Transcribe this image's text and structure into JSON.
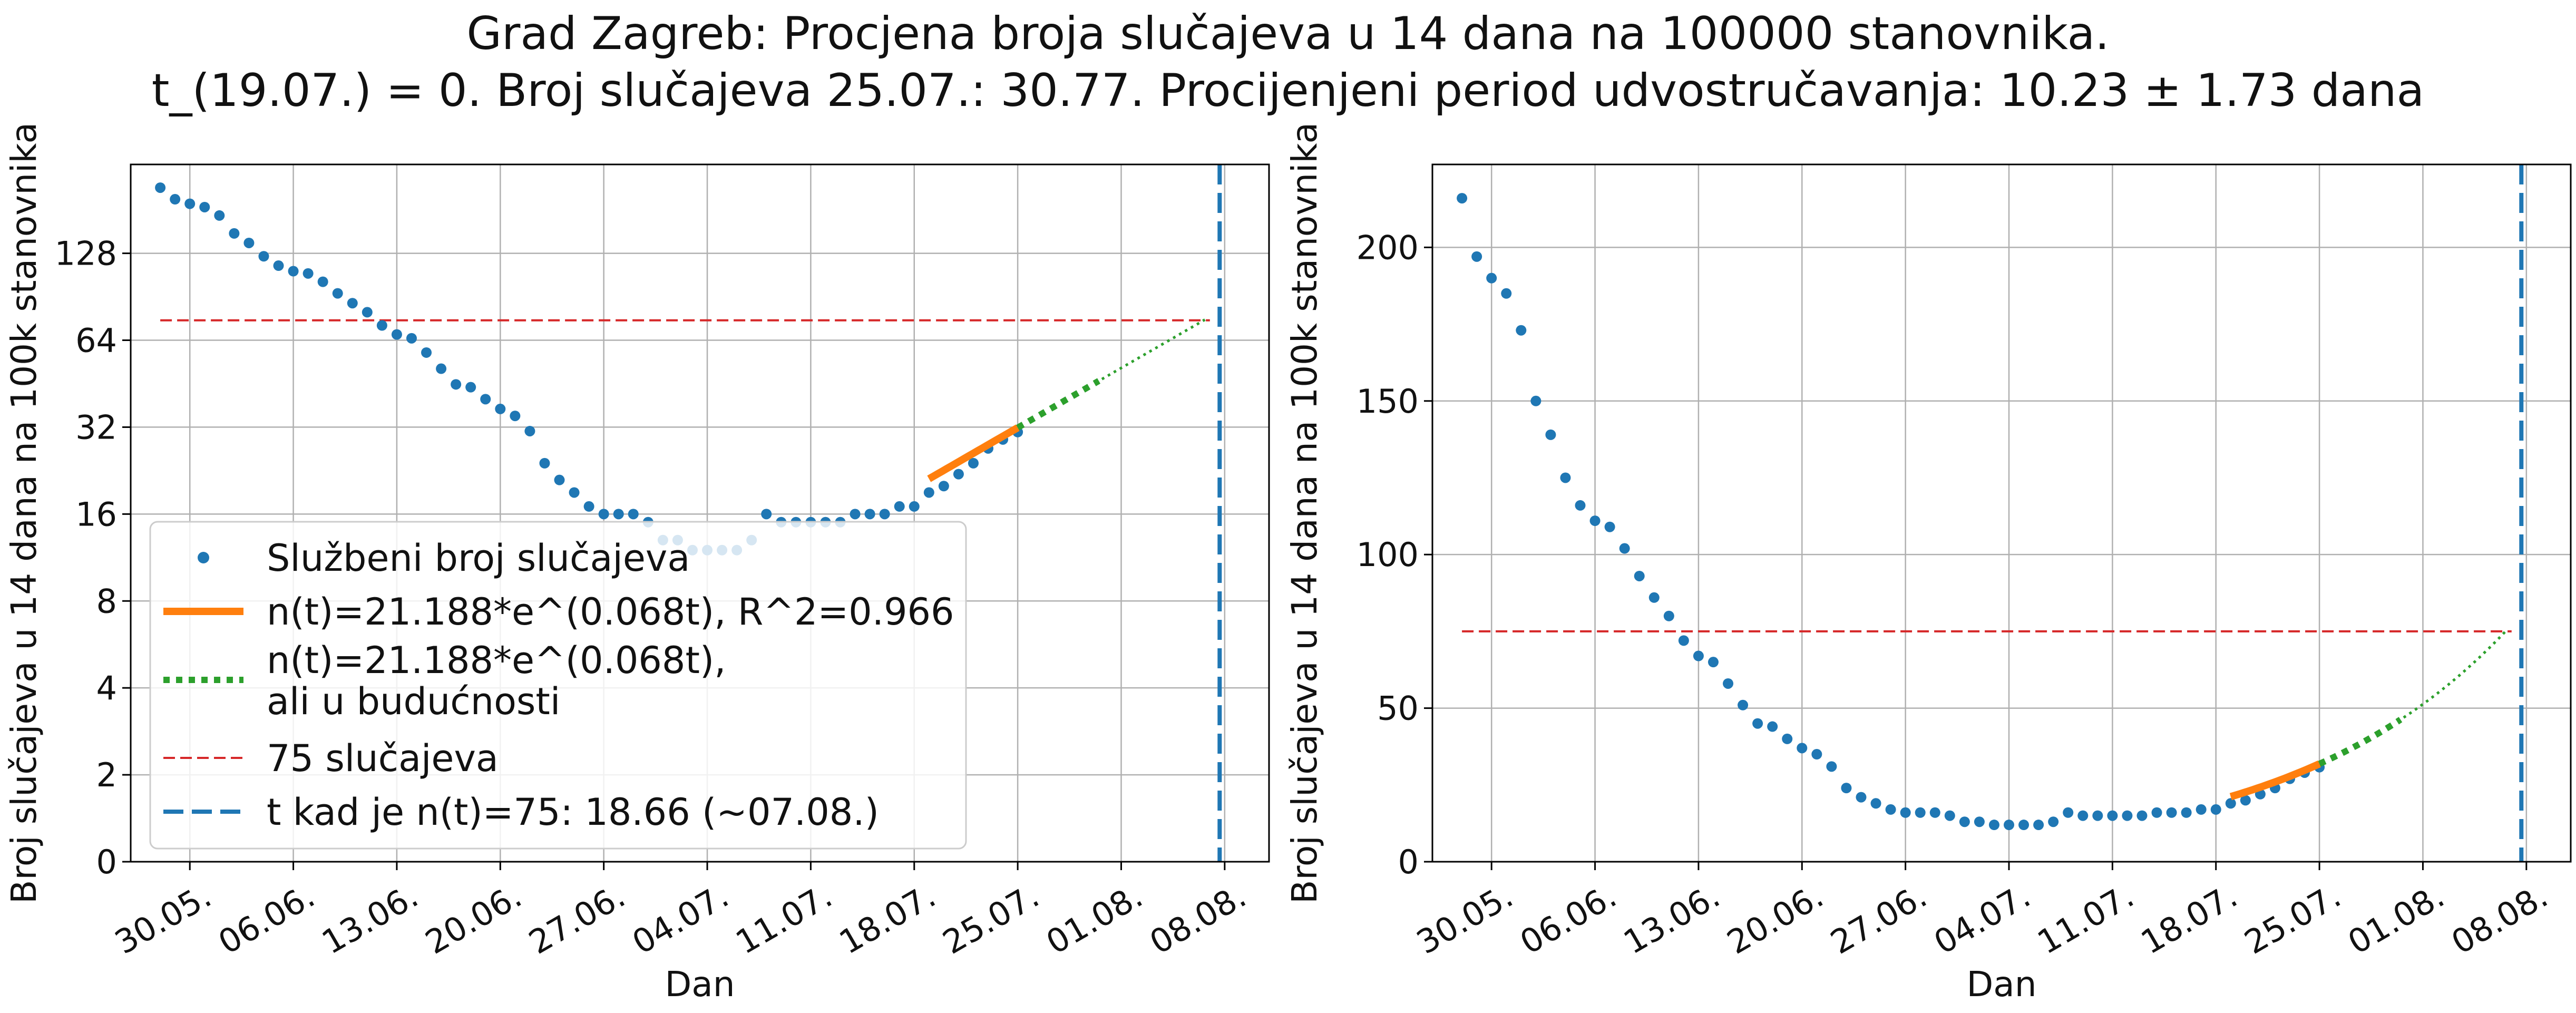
{
  "title_line1": "Grad Zagreb: Procjena broja slučajeva u 14 dana na 100000 stanovnika.",
  "title_line2": "t_(19.07.) = 0. Broj slučajeva 25.07.: 30.77. Procijenjeni period udvostručavanja: 10.23 ± 1.73 dana",
  "colors": {
    "official": "#1f77b4",
    "fit": "#ff7f0e",
    "projection": "#2ca02c",
    "threshold": "#d62728",
    "target_line": "#1f77b4",
    "grid": "#b0b0b0"
  },
  "chart_data": [
    {
      "type": "scatter",
      "scale": "log2",
      "xlabel": "Dan",
      "ylabel": "Broj slučajeva u 14 dana na 100k stanovnika",
      "xlim": [
        "2020-05-26",
        "2020-08-11"
      ],
      "ylim": [
        0,
        260
      ],
      "xticks": [
        "30.05.",
        "06.06.",
        "13.06.",
        "20.06.",
        "27.06.",
        "04.07.",
        "11.07.",
        "18.07.",
        "25.07.",
        "01.08.",
        "08.08."
      ],
      "yticks": [
        "0",
        "2",
        "4",
        "8",
        "16",
        "32",
        "64",
        "128"
      ],
      "grid": true,
      "legend_position": "lower-left",
      "legend": [
        {
          "label": "Službeni broj slučajeva",
          "style": "marker",
          "color": "#1f77b4"
        },
        {
          "label": "n(t)=21.188*e^(0.068t), R^2=0.966",
          "style": "thick-line",
          "color": "#ff7f0e"
        },
        {
          "label": "n(t)=21.188*e^(0.068t),\nali u budućnosti",
          "style": "dotted",
          "color": "#2ca02c"
        },
        {
          "label": "75 slučajeva",
          "style": "dashed",
          "color": "#d62728"
        },
        {
          "label": "t kad je n(t)=75: 18.66 (~07.08.)",
          "style": "long-dashed",
          "color": "#1f77b4"
        }
      ]
    },
    {
      "type": "scatter",
      "scale": "linear",
      "xlabel": "Dan",
      "ylabel": "Broj slučajeva u 14 dana na 100k stanovnika",
      "xlim": [
        "2020-05-26",
        "2020-08-11"
      ],
      "ylim": [
        0,
        227
      ],
      "xticks": [
        "30.05.",
        "06.06.",
        "13.06.",
        "20.06.",
        "27.06.",
        "04.07.",
        "11.07.",
        "18.07.",
        "25.07.",
        "01.08.",
        "08.08."
      ],
      "yticks": [
        "0",
        "50",
        "100",
        "150",
        "200"
      ],
      "grid": true
    }
  ],
  "series": {
    "official": {
      "name": "Službeni broj slučajeva",
      "x": [
        "2020-05-28",
        "2020-05-29",
        "2020-05-30",
        "2020-05-31",
        "2020-06-01",
        "2020-06-02",
        "2020-06-03",
        "2020-06-04",
        "2020-06-05",
        "2020-06-06",
        "2020-06-07",
        "2020-06-08",
        "2020-06-09",
        "2020-06-10",
        "2020-06-11",
        "2020-06-12",
        "2020-06-13",
        "2020-06-14",
        "2020-06-15",
        "2020-06-16",
        "2020-06-17",
        "2020-06-18",
        "2020-06-19",
        "2020-06-20",
        "2020-06-21",
        "2020-06-22",
        "2020-06-23",
        "2020-06-24",
        "2020-06-25",
        "2020-06-26",
        "2020-06-27",
        "2020-06-28",
        "2020-06-29",
        "2020-06-30",
        "2020-07-01",
        "2020-07-02",
        "2020-07-03",
        "2020-07-04",
        "2020-07-05",
        "2020-07-06",
        "2020-07-07",
        "2020-07-08",
        "2020-07-09",
        "2020-07-10",
        "2020-07-11",
        "2020-07-12",
        "2020-07-13",
        "2020-07-14",
        "2020-07-15",
        "2020-07-16",
        "2020-07-17",
        "2020-07-18",
        "2020-07-19",
        "2020-07-20",
        "2020-07-21",
        "2020-07-22",
        "2020-07-23",
        "2020-07-24",
        "2020-07-25"
      ],
      "y": [
        216,
        197,
        190,
        185,
        173,
        150,
        139,
        125,
        116,
        111,
        109,
        102,
        93,
        86,
        80,
        72,
        67,
        65,
        58,
        51,
        45,
        44,
        40,
        37,
        35,
        31,
        24,
        21,
        19,
        17,
        16,
        16,
        16,
        15,
        13,
        13,
        12,
        12,
        12,
        12,
        13,
        16,
        15,
        15,
        15,
        15,
        15,
        16,
        16,
        16,
        17,
        17,
        19,
        20,
        22,
        24,
        27,
        29,
        30.77
      ]
    },
    "fit": {
      "a": 21.188,
      "k": 0.068,
      "t0": "2020-07-19",
      "from": "2020-07-19",
      "to": "2020-07-25"
    },
    "projection": {
      "from": "2020-07-25",
      "to": "2020-08-07",
      "end_t": 18.66
    },
    "threshold": {
      "value": 75,
      "from": "2020-05-28",
      "to": "2020-08-07"
    },
    "target": {
      "date": "2020-08-07",
      "t": 18.66
    }
  }
}
